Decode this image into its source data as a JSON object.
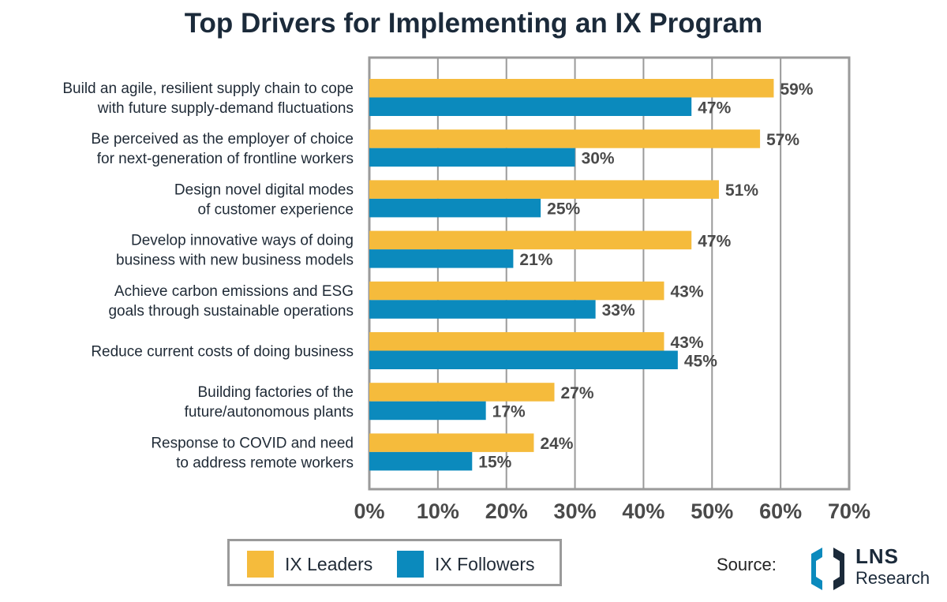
{
  "chart_data": {
    "type": "bar",
    "orientation": "horizontal",
    "title": "Top Drivers for Implementing an IX Program",
    "categories": [
      [
        "Build an agile, resilient supply chain to cope",
        "with future supply-demand fluctuations"
      ],
      [
        "Be perceived as the employer of choice",
        "for next-generation of frontline workers"
      ],
      [
        "Design novel digital modes",
        "of customer experience"
      ],
      [
        "Develop innovative ways of doing",
        "business with new business models"
      ],
      [
        "Achieve carbon emissions and ESG",
        "goals through sustainable operations"
      ],
      [
        "Reduce current costs of doing business"
      ],
      [
        "Building factories of the",
        "future/autonomous plants"
      ],
      [
        "Response to COVID and need",
        "to address remote workers"
      ]
    ],
    "series": [
      {
        "name": "IX Leaders",
        "color": "#f5bb3c",
        "values": [
          59,
          57,
          51,
          47,
          43,
          43,
          27,
          24
        ]
      },
      {
        "name": "IX Followers",
        "color": "#0b8abd",
        "values": [
          47,
          30,
          25,
          21,
          33,
          45,
          17,
          15
        ]
      }
    ],
    "xlim": [
      0,
      70
    ],
    "xticks": [
      0,
      10,
      20,
      30,
      40,
      50,
      60,
      70
    ],
    "tick_suffix": "%",
    "value_suffix": "%",
    "grid": true,
    "legend_position": "bottom-left"
  },
  "legend": {
    "leaders_label": "IX Leaders",
    "followers_label": "IX Followers",
    "leaders_color": "#f5bb3c",
    "followers_color": "#0b8abd"
  },
  "source": {
    "label": "Source:",
    "logo_name": "LNS",
    "logo_sub": "Research"
  }
}
